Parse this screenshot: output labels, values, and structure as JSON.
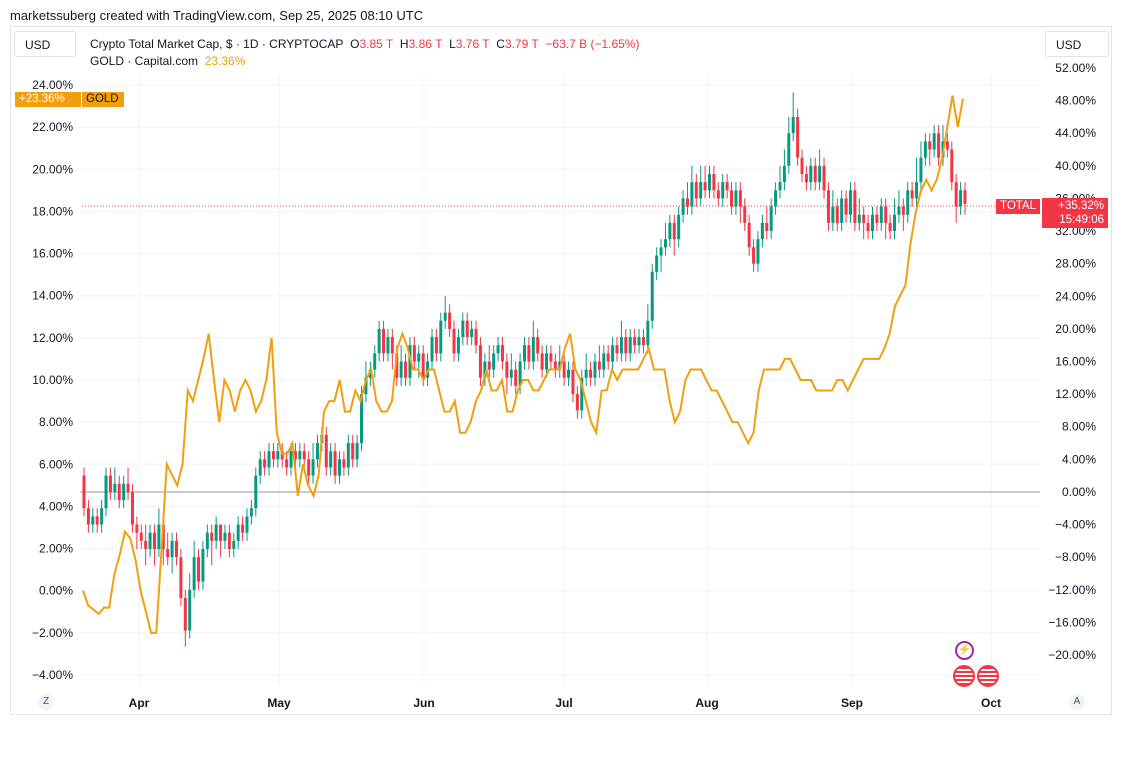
{
  "header": {
    "caption": "marketssuberg created with TradingView.com, Sep 25, 2025 08:10 UTC"
  },
  "toolbar": {
    "currency_left": "USD",
    "currency_right": "USD"
  },
  "legend": {
    "main": {
      "name": "Crypto Total Market Cap, $ · 1D · CRYPTOCAP",
      "o_label": "O",
      "o": "3.85 T",
      "h_label": "H",
      "h": "3.86 T",
      "l_label": "L",
      "l": "3.76 T",
      "c_label": "C",
      "c": "3.79 T",
      "change": "−63.7 B (−1.65%)"
    },
    "compare": {
      "name": "GOLD · Capital.com",
      "value": "23.36%"
    }
  },
  "tags": {
    "gold_value": "+23.36%",
    "gold_name": "GOLD",
    "total_name": "TOTAL",
    "total_value": "+35.32%",
    "countdown": "15:49:06"
  },
  "colors": {
    "up": "#089981",
    "down": "#f23645",
    "gold": "#f0a00e",
    "grid": "#f0f3fa"
  },
  "chart_data": {
    "type": "line",
    "x_labels": [
      "Apr",
      "May",
      "Jun",
      "Jul",
      "Aug",
      "Sep",
      "Oct"
    ],
    "left_axis": {
      "ticks": [
        "24.00%",
        "22.00%",
        "20.00%",
        "18.00%",
        "16.00%",
        "14.00%",
        "12.00%",
        "10.00%",
        "8.00%",
        "6.00%",
        "4.00%",
        "2.00%",
        "0.00%",
        "−2.00%",
        "−4.00%"
      ],
      "range": [
        -4,
        24
      ]
    },
    "right_axis": {
      "ticks": [
        "52.00%",
        "48.00%",
        "44.00%",
        "40.00%",
        "36.00%",
        "32.00%",
        "28.00%",
        "24.00%",
        "20.00%",
        "16.00%",
        "12.00%",
        "8.00%",
        "4.00%",
        "0.00%",
        "−4.00%",
        "−8.00%",
        "−12.00%",
        "−16.00%",
        "−20.00%"
      ],
      "range": [
        -20,
        52
      ]
    },
    "series": [
      {
        "name": "GOLD",
        "axis": "left",
        "values": [
          0,
          -0.7,
          -0.9,
          -1.1,
          -0.8,
          -0.8,
          0.8,
          1.7,
          2.8,
          2.5,
          1.5,
          0,
          -1,
          -2,
          -2,
          2,
          6,
          5.5,
          5,
          6,
          9.5,
          9,
          10,
          11,
          12.2,
          10,
          8,
          10,
          9.5,
          8.5,
          9.5,
          10,
          9.5,
          8.5,
          9,
          10,
          12,
          7.5,
          6.5,
          6.5,
          7,
          4.5,
          6,
          5,
          4.5,
          5.5,
          8.5,
          9,
          9,
          10,
          8.5,
          8.5,
          9.5,
          9,
          10,
          10.5,
          9,
          8.5,
          8.5,
          9,
          11.5,
          12.2,
          11.5,
          10.5,
          10.5,
          10,
          10.5,
          10.5,
          9.5,
          8.5,
          8.5,
          9,
          7.5,
          7.5,
          8,
          9,
          9.5,
          10.5,
          9.5,
          9.5,
          10,
          8.5,
          8.5,
          9.5,
          10,
          10,
          9.5,
          9.5,
          10,
          10.5,
          10.5,
          10.5,
          11.5,
          12.2,
          10.5,
          10,
          9,
          8,
          7.5,
          9.5,
          9.5,
          10.5,
          10,
          10.5,
          10.5,
          10.5,
          10.5,
          11,
          11.5,
          10.5,
          10.5,
          10.5,
          9,
          8,
          8.5,
          10,
          10.5,
          10.5,
          10.5,
          10,
          9.5,
          9.5,
          9,
          8.5,
          8,
          8,
          7.5,
          7,
          7.5,
          9.5,
          10.5,
          10.5,
          10.5,
          10.5,
          11,
          11,
          10.5,
          10,
          10,
          10,
          9.5,
          9.5,
          9.5,
          9.5,
          10,
          10,
          9.5,
          10,
          10.5,
          11,
          11,
          11,
          11,
          11.5,
          12.2,
          13.5,
          14,
          14.5,
          16.5,
          18,
          19,
          19.5,
          19,
          19.5,
          20.5,
          22,
          23.5,
          22,
          23.36
        ]
      }
    ],
    "candles_note": "Crypto Total Market Cap daily candles, percent change on right axis",
    "candles": [
      [
        2,
        -2,
        3,
        -3
      ],
      [
        -2,
        -4,
        -1,
        -5
      ],
      [
        -4,
        -3,
        -2,
        -5
      ],
      [
        -3,
        -4,
        -2,
        -5
      ],
      [
        -4,
        -2,
        -1,
        -5
      ],
      [
        -2,
        2,
        3,
        -3
      ],
      [
        2,
        0,
        3,
        -1
      ],
      [
        0,
        1,
        3,
        -1
      ],
      [
        1,
        -1,
        2,
        -2
      ],
      [
        -1,
        1,
        2,
        -2
      ],
      [
        1,
        0,
        3,
        -1
      ],
      [
        0,
        -4,
        1,
        -5
      ],
      [
        -4,
        -5,
        -3,
        -7
      ],
      [
        -5,
        -6,
        -4,
        -7
      ],
      [
        -6,
        -7,
        -4,
        -9
      ],
      [
        -7,
        -5,
        -4,
        -8
      ],
      [
        -5,
        -7,
        -4,
        -9
      ],
      [
        -7,
        -4,
        -2,
        -8
      ],
      [
        -4,
        -7,
        -3,
        -9
      ],
      [
        -7,
        -8,
        -5,
        -9
      ],
      [
        -8,
        -6,
        -5,
        -10
      ],
      [
        -6,
        -8,
        -5,
        -9
      ],
      [
        -8,
        -13,
        -7,
        -14
      ],
      [
        -13,
        -17,
        -12,
        -19
      ],
      [
        -17,
        -12,
        -10,
        -18
      ],
      [
        -12,
        -8,
        -6,
        -13
      ],
      [
        -8,
        -11,
        -7,
        -12
      ],
      [
        -11,
        -7,
        -6,
        -12
      ],
      [
        -7,
        -5,
        -4,
        -8
      ],
      [
        -5,
        -6,
        -4,
        -9
      ],
      [
        -6,
        -4,
        -3,
        -7
      ],
      [
        -4,
        -6,
        -4,
        -8
      ],
      [
        -6,
        -5,
        -4,
        -7
      ],
      [
        -5,
        -7,
        -4,
        -8
      ],
      [
        -7,
        -6,
        -5,
        -8
      ],
      [
        -6,
        -4,
        -3,
        -7
      ],
      [
        -4,
        -5,
        -3,
        -6
      ],
      [
        -5,
        -3,
        -2,
        -6
      ],
      [
        -3,
        -2,
        -1,
        -4
      ],
      [
        -2,
        2,
        3,
        -3
      ],
      [
        2,
        4,
        5,
        1
      ],
      [
        4,
        3,
        5,
        2
      ],
      [
        3,
        5,
        6,
        2
      ],
      [
        5,
        4,
        6,
        3
      ],
      [
        4,
        5,
        6,
        3
      ],
      [
        5,
        4,
        6,
        3
      ],
      [
        4,
        3,
        5,
        2
      ],
      [
        3,
        5,
        6,
        2
      ],
      [
        5,
        4,
        6,
        3
      ],
      [
        4,
        5,
        6,
        3
      ],
      [
        5,
        4,
        6,
        3
      ],
      [
        4,
        2,
        5,
        1
      ],
      [
        2,
        4,
        6,
        1
      ],
      [
        4,
        6,
        7,
        3
      ],
      [
        6,
        7,
        8,
        5
      ],
      [
        7,
        3,
        8,
        2
      ],
      [
        3,
        5,
        6,
        2
      ],
      [
        5,
        2,
        6,
        1
      ],
      [
        2,
        4,
        5,
        1
      ],
      [
        4,
        3,
        5,
        2
      ],
      [
        3,
        6,
        7,
        2
      ],
      [
        6,
        4,
        7,
        3
      ],
      [
        4,
        6,
        7,
        3
      ],
      [
        6,
        12,
        13,
        5
      ],
      [
        12,
        14,
        16,
        11
      ],
      [
        14,
        15,
        16,
        13
      ],
      [
        15,
        17,
        18,
        14
      ],
      [
        17,
        20,
        21,
        16
      ],
      [
        20,
        17,
        21,
        16
      ],
      [
        17,
        19,
        20,
        16
      ],
      [
        19,
        17,
        20,
        15
      ],
      [
        17,
        14,
        18,
        13
      ],
      [
        14,
        16,
        18,
        13
      ],
      [
        16,
        14,
        17,
        13
      ],
      [
        14,
        18,
        19,
        13
      ],
      [
        18,
        16,
        19,
        15
      ],
      [
        16,
        17,
        18,
        14
      ],
      [
        17,
        14,
        18,
        13
      ],
      [
        14,
        16,
        17,
        13
      ],
      [
        16,
        19,
        20,
        15
      ],
      [
        19,
        17,
        20,
        16
      ],
      [
        17,
        21,
        22,
        16
      ],
      [
        21,
        22,
        24,
        20
      ],
      [
        22,
        20,
        23,
        19
      ],
      [
        20,
        17,
        21,
        16
      ],
      [
        17,
        19,
        20,
        16
      ],
      [
        19,
        21,
        22,
        18
      ],
      [
        21,
        19,
        22,
        18
      ],
      [
        19,
        20,
        21,
        18
      ],
      [
        20,
        18,
        21,
        17
      ],
      [
        18,
        14,
        19,
        13
      ],
      [
        14,
        16,
        17,
        13
      ],
      [
        16,
        15,
        18,
        14
      ],
      [
        15,
        17,
        18,
        14
      ],
      [
        17,
        18,
        19,
        16
      ],
      [
        18,
        16,
        19,
        15
      ],
      [
        16,
        14,
        17,
        12
      ],
      [
        14,
        15,
        17,
        13
      ],
      [
        15,
        13,
        16,
        12
      ],
      [
        13,
        16,
        17,
        12
      ],
      [
        16,
        18,
        19,
        15
      ],
      [
        18,
        16,
        19,
        15
      ],
      [
        16,
        19,
        21,
        15
      ],
      [
        19,
        17,
        20,
        16
      ],
      [
        17,
        15,
        18,
        14
      ],
      [
        15,
        17,
        18,
        14
      ],
      [
        17,
        16,
        18,
        15
      ],
      [
        16,
        15,
        17,
        14
      ],
      [
        15,
        16,
        18,
        14
      ],
      [
        16,
        14,
        17,
        13
      ],
      [
        14,
        15,
        16,
        13
      ],
      [
        15,
        12,
        16,
        11
      ],
      [
        12,
        10,
        13,
        9
      ],
      [
        10,
        14,
        15,
        9
      ],
      [
        14,
        15,
        17,
        13
      ],
      [
        15,
        14,
        16,
        13
      ],
      [
        14,
        16,
        17,
        13
      ],
      [
        16,
        15,
        18,
        14
      ],
      [
        15,
        17,
        18,
        14
      ],
      [
        17,
        16,
        18,
        15
      ],
      [
        16,
        18,
        19,
        15
      ],
      [
        18,
        17,
        19,
        16
      ],
      [
        17,
        19,
        21,
        16
      ],
      [
        19,
        17,
        20,
        16
      ],
      [
        17,
        19,
        20,
        16
      ],
      [
        19,
        18,
        20,
        17
      ],
      [
        18,
        19,
        20,
        17
      ],
      [
        19,
        18,
        20,
        17
      ],
      [
        18,
        21,
        23,
        17
      ],
      [
        21,
        27,
        28,
        20
      ],
      [
        27,
        29,
        30,
        26
      ],
      [
        29,
        30,
        31,
        27
      ],
      [
        30,
        31,
        33,
        29
      ],
      [
        31,
        33,
        34,
        30
      ],
      [
        33,
        31,
        34,
        29
      ],
      [
        31,
        34,
        35,
        30
      ],
      [
        34,
        36,
        37,
        33
      ],
      [
        36,
        35,
        38,
        34
      ],
      [
        35,
        38,
        40,
        34
      ],
      [
        38,
        36,
        39,
        35
      ],
      [
        36,
        38,
        40,
        35
      ],
      [
        38,
        37,
        40,
        36
      ],
      [
        37,
        39,
        40,
        36
      ],
      [
        39,
        37,
        40,
        36
      ],
      [
        37,
        36,
        38,
        35
      ],
      [
        36,
        38,
        39,
        35
      ],
      [
        38,
        37,
        39,
        36
      ],
      [
        37,
        35,
        38,
        34
      ],
      [
        35,
        37,
        38,
        34
      ],
      [
        37,
        35,
        38,
        33
      ],
      [
        35,
        33,
        36,
        32
      ],
      [
        33,
        30,
        34,
        29
      ],
      [
        30,
        28,
        31,
        27
      ],
      [
        28,
        31,
        32,
        27
      ],
      [
        31,
        33,
        34,
        30
      ],
      [
        33,
        32,
        35,
        31
      ],
      [
        32,
        35,
        36,
        31
      ],
      [
        35,
        37,
        38,
        34
      ],
      [
        37,
        38,
        40,
        36
      ],
      [
        38,
        40,
        42,
        37
      ],
      [
        40,
        44,
        46,
        39
      ],
      [
        44,
        46,
        49,
        43
      ],
      [
        46,
        41,
        47,
        40
      ],
      [
        41,
        39,
        42,
        38
      ],
      [
        39,
        38,
        40,
        37
      ],
      [
        38,
        40,
        41,
        37
      ],
      [
        40,
        38,
        41,
        37
      ],
      [
        38,
        40,
        42,
        37
      ],
      [
        40,
        37,
        41,
        36
      ],
      [
        37,
        33,
        38,
        32
      ],
      [
        33,
        35,
        37,
        32
      ],
      [
        35,
        33,
        36,
        32
      ],
      [
        33,
        36,
        37,
        32
      ],
      [
        36,
        34,
        37,
        33
      ],
      [
        34,
        37,
        38,
        33
      ],
      [
        37,
        33,
        38,
        32
      ],
      [
        33,
        34,
        36,
        32
      ],
      [
        34,
        33,
        35,
        31
      ],
      [
        33,
        32,
        34,
        31
      ],
      [
        32,
        34,
        35,
        31
      ],
      [
        34,
        33,
        35,
        32
      ],
      [
        33,
        35,
        36,
        32
      ],
      [
        35,
        33,
        36,
        31
      ],
      [
        33,
        32,
        34,
        31
      ],
      [
        32,
        34,
        36,
        31
      ],
      [
        34,
        35,
        37,
        33
      ],
      [
        35,
        34,
        36,
        32
      ],
      [
        34,
        37,
        38,
        33
      ],
      [
        37,
        36,
        38,
        35
      ],
      [
        36,
        38,
        41,
        35
      ],
      [
        38,
        41,
        43,
        37
      ],
      [
        41,
        43,
        44,
        40
      ],
      [
        43,
        42,
        44,
        40
      ],
      [
        42,
        44,
        45,
        41
      ],
      [
        44,
        41,
        45,
        40
      ],
      [
        41,
        43,
        45,
        40
      ],
      [
        43,
        42,
        44,
        41
      ],
      [
        42,
        38,
        43,
        37
      ],
      [
        38,
        35,
        39,
        33
      ],
      [
        35,
        37,
        38,
        34
      ],
      [
        37,
        35.32,
        38,
        34
      ]
    ]
  }
}
